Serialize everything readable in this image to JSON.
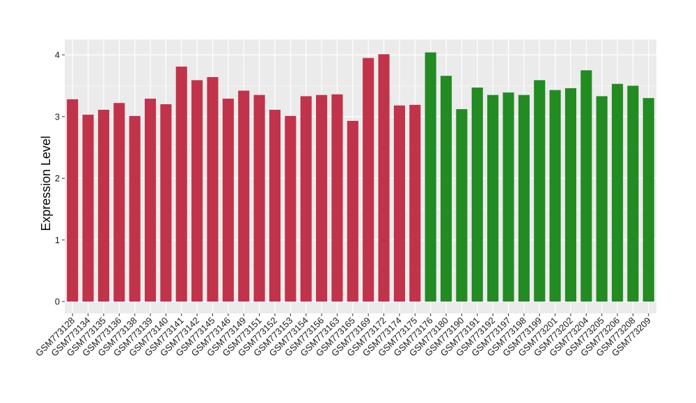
{
  "chart_data": {
    "type": "bar",
    "xlabel": "",
    "ylabel": "Expression Level",
    "ylim": [
      0,
      4.2
    ],
    "yticks": [
      0,
      1,
      2,
      3,
      4
    ],
    "grid": true,
    "legend": "none",
    "background_color": "#ebebeb",
    "grid_color": "#ffffff",
    "group_colors": {
      "A": "#c1334a",
      "B": "#228b22"
    },
    "categories": [
      "GSM773128",
      "GSM773134",
      "GSM773135",
      "GSM773136",
      "GSM773138",
      "GSM773139",
      "GSM773140",
      "GSM773141",
      "GSM773142",
      "GSM773145",
      "GSM773146",
      "GSM773149",
      "GSM773151",
      "GSM773152",
      "GSM773153",
      "GSM773154",
      "GSM773156",
      "GSM773163",
      "GSM773165",
      "GSM773169",
      "GSM773172",
      "GSM773174",
      "GSM773175",
      "GSM773176",
      "GSM773180",
      "GSM773190",
      "GSM773191",
      "GSM773192",
      "GSM773197",
      "GSM773198",
      "GSM773199",
      "GSM773201",
      "GSM773202",
      "GSM773204",
      "GSM773205",
      "GSM773206",
      "GSM773208",
      "GSM773209"
    ],
    "values": [
      3.28,
      3.03,
      3.11,
      3.22,
      3.01,
      3.29,
      3.2,
      3.81,
      3.59,
      3.64,
      3.29,
      3.42,
      3.35,
      3.11,
      3.01,
      3.33,
      3.35,
      3.36,
      2.93,
      3.95,
      4.01,
      3.18,
      3.19,
      4.04,
      3.66,
      3.12,
      3.47,
      3.35,
      3.39,
      3.35,
      3.59,
      3.43,
      3.46,
      3.75,
      3.33,
      3.53,
      3.5,
      3.3
    ],
    "groups": [
      "A",
      "A",
      "A",
      "A",
      "A",
      "A",
      "A",
      "A",
      "A",
      "A",
      "A",
      "A",
      "A",
      "A",
      "A",
      "A",
      "A",
      "A",
      "A",
      "A",
      "A",
      "A",
      "A",
      "B",
      "B",
      "B",
      "B",
      "B",
      "B",
      "B",
      "B",
      "B",
      "B",
      "B",
      "B",
      "B",
      "B",
      "B"
    ]
  }
}
